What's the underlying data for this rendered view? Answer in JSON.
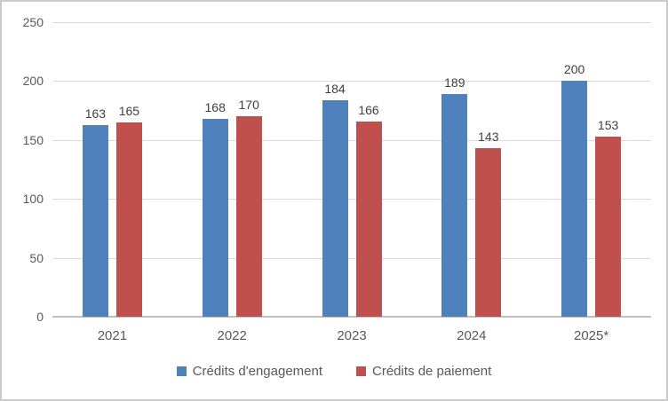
{
  "chart_data": {
    "type": "bar",
    "categories": [
      "2021",
      "2022",
      "2023",
      "2024",
      "2025*"
    ],
    "series": [
      {
        "name": "Crédits d'engagement",
        "color": "#4F81BD",
        "values": [
          163,
          168,
          184,
          189,
          200
        ]
      },
      {
        "name": "Crédits de paiement",
        "color": "#C0504D",
        "values": [
          165,
          170,
          166,
          143,
          153
        ]
      }
    ],
    "title": "",
    "xlabel": "",
    "ylabel": "",
    "ylim": [
      0,
      250
    ],
    "yticks": [
      0,
      50,
      100,
      150,
      200,
      250
    ],
    "grid": true,
    "data_labels": true,
    "legend_position": "bottom"
  },
  "colors": {
    "background": "#FFFFFF",
    "frame_border": "#CBCBCB",
    "gridline": "#D9D9D9",
    "axis_line": "#BFBFBF",
    "tick_label": "#595959",
    "data_label": "#404040",
    "category_label": "#595959",
    "legend_label": "#595959"
  }
}
